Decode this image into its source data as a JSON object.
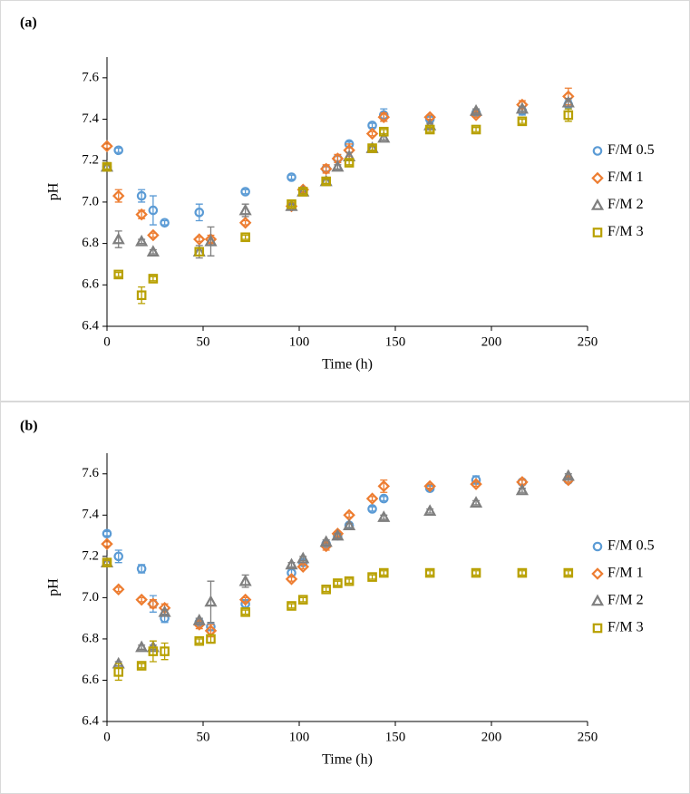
{
  "chart_data": [
    {
      "type": "scatter",
      "panel_label": "(a)",
      "x_label": "Time (h)",
      "y_label": "pH",
      "x": [
        0,
        6,
        18,
        24,
        30,
        48,
        54,
        72,
        96,
        102,
        114,
        120,
        126,
        138,
        144,
        168,
        192,
        216,
        240
      ],
      "xlim": [
        0,
        250
      ],
      "xticks": [
        0,
        50,
        100,
        150,
        200,
        250
      ],
      "ylim": [
        6.4,
        7.7
      ],
      "yticks": [
        6.4,
        6.6,
        6.8,
        {
          "value": 7,
          "label": "7.0"
        },
        7.2,
        7.4,
        7.6
      ],
      "legend": "right",
      "series": [
        {
          "name": "F/M 0.5",
          "color": "#5b9bd5",
          "marker": "circle",
          "values": [
            7.17,
            7.25,
            7.03,
            6.96,
            6.9,
            6.95,
            null,
            7.05,
            7.12,
            null,
            7.16,
            7.21,
            7.28,
            7.37,
            7.42,
            7.4,
            7.43,
            7.44,
            7.47
          ],
          "errors": [
            0.01,
            0.01,
            0.03,
            0.07,
            0.01,
            0.04,
            null,
            0.01,
            0.01,
            null,
            0.01,
            0.01,
            0.01,
            0.01,
            0.03,
            0.01,
            0.01,
            0.02,
            0.02
          ]
        },
        {
          "name": "F/M 1",
          "color": "#ed7d31",
          "marker": "diamond",
          "values": [
            7.27,
            7.03,
            6.94,
            6.84,
            null,
            6.82,
            6.82,
            6.9,
            6.98,
            7.06,
            7.16,
            7.21,
            7.25,
            7.33,
            7.41,
            7.41,
            7.42,
            7.47,
            7.51
          ],
          "errors": [
            0.01,
            0.03,
            0.02,
            0.01,
            null,
            0.01,
            0.02,
            0.01,
            0.01,
            0.01,
            0.02,
            0.02,
            0.03,
            0.01,
            0.02,
            0.01,
            0.01,
            0.02,
            0.04
          ]
        },
        {
          "name": "F/M 2",
          "color": "#7f7f7f",
          "marker": "triangle",
          "values": [
            7.17,
            6.82,
            6.81,
            6.76,
            null,
            6.76,
            6.81,
            6.96,
            6.98,
            7.05,
            7.1,
            7.17,
            7.22,
            7.26,
            7.31,
            7.37,
            7.44,
            7.45,
            7.48
          ],
          "errors": [
            0.02,
            0.04,
            0.01,
            0.01,
            null,
            0.03,
            0.07,
            0.03,
            0.01,
            0.01,
            0.01,
            0.01,
            0.02,
            0.01,
            0.01,
            0.01,
            0.01,
            0.01,
            0.02
          ]
        },
        {
          "name": "F/M 3",
          "color": "#b8a000",
          "marker": "square",
          "values": [
            7.17,
            6.65,
            6.55,
            6.63,
            null,
            6.76,
            null,
            6.83,
            6.99,
            7.05,
            7.1,
            null,
            7.19,
            7.26,
            7.34,
            7.35,
            7.35,
            7.39,
            7.42
          ],
          "errors": [
            0.01,
            0.01,
            0.04,
            0.01,
            null,
            0.02,
            null,
            0.01,
            0.01,
            0.01,
            0.01,
            null,
            0.01,
            0.01,
            0.01,
            0.01,
            0.01,
            0.01,
            0.03
          ]
        }
      ]
    },
    {
      "type": "scatter",
      "panel_label": "(b)",
      "x_label": "Time (h)",
      "y_label": "pH",
      "x": [
        0,
        6,
        18,
        24,
        30,
        48,
        54,
        72,
        96,
        102,
        114,
        120,
        126,
        138,
        144,
        168,
        192,
        216,
        240
      ],
      "xlim": [
        0,
        250
      ],
      "xticks": [
        0,
        50,
        100,
        150,
        200,
        250
      ],
      "ylim": [
        6.4,
        7.7
      ],
      "yticks": [
        6.4,
        6.6,
        6.8,
        {
          "value": 7,
          "label": "7.0"
        },
        7.2,
        7.4,
        7.6
      ],
      "legend": "right",
      "series": [
        {
          "name": "F/M 0.5",
          "color": "#5b9bd5",
          "marker": "circle",
          "values": [
            7.31,
            7.2,
            7.14,
            6.97,
            6.9,
            6.88,
            6.86,
            6.97,
            7.12,
            7.17,
            7.26,
            7.3,
            7.35,
            7.43,
            7.48,
            7.53,
            7.57,
            7.56,
            7.57
          ],
          "errors": [
            0.01,
            0.03,
            0.02,
            0.04,
            0.02,
            0.02,
            0.02,
            0.02,
            0.02,
            0.01,
            0.01,
            0.01,
            0.01,
            0.01,
            0.01,
            0.01,
            0.02,
            0.01,
            0.01
          ]
        },
        {
          "name": "F/M 1",
          "color": "#ed7d31",
          "marker": "diamond",
          "values": [
            7.26,
            7.04,
            6.99,
            6.97,
            6.95,
            6.87,
            6.84,
            6.99,
            7.09,
            7.15,
            7.25,
            7.31,
            7.4,
            7.48,
            7.54,
            7.54,
            7.55,
            7.56,
            7.57
          ],
          "errors": [
            0.01,
            0.01,
            0.01,
            0.02,
            0.02,
            0.02,
            0.03,
            0.01,
            0.01,
            0.01,
            0.02,
            0.01,
            0.01,
            0.01,
            0.03,
            0.01,
            0.01,
            0.01,
            0.01
          ]
        },
        {
          "name": "F/M 2",
          "color": "#7f7f7f",
          "marker": "triangle",
          "values": [
            7.17,
            6.68,
            6.76,
            6.76,
            6.93,
            6.89,
            6.98,
            7.08,
            7.16,
            7.19,
            7.27,
            7.3,
            7.35,
            null,
            7.39,
            7.42,
            7.46,
            7.52,
            7.59
          ],
          "errors": [
            0.01,
            0.01,
            0.01,
            0.01,
            0.01,
            0.01,
            0.1,
            0.03,
            0.01,
            0.01,
            0.01,
            0.01,
            0.01,
            null,
            0.01,
            0.01,
            0.01,
            0.01,
            0.01
          ]
        },
        {
          "name": "F/M 3",
          "color": "#b8a000",
          "marker": "square",
          "values": [
            7.17,
            6.64,
            6.67,
            6.74,
            6.74,
            6.79,
            6.8,
            6.93,
            6.96,
            6.99,
            7.04,
            7.07,
            7.08,
            7.1,
            7.12,
            7.12,
            7.12,
            7.12,
            7.12
          ],
          "errors": [
            0.01,
            0.04,
            0.01,
            0.05,
            0.04,
            0.01,
            0.02,
            0.01,
            0.01,
            0.01,
            0.01,
            0.01,
            0.01,
            0.01,
            0.01,
            0.01,
            0.01,
            0.01,
            0.01
          ]
        }
      ]
    }
  ]
}
